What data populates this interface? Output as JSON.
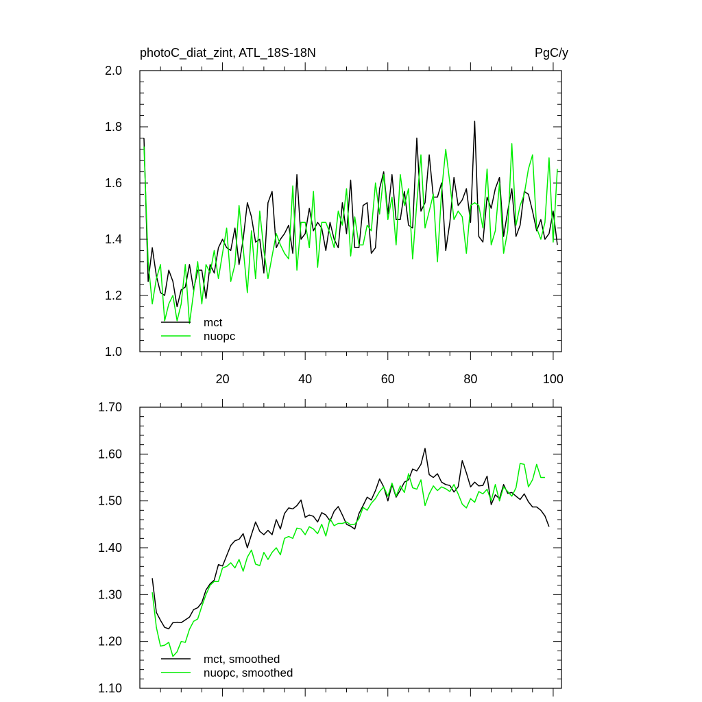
{
  "chart_data": [
    {
      "type": "line",
      "title": "photoC_diat_zint, ATL_18S-18N",
      "units": "PgC/y",
      "xlim": [
        0,
        102
      ],
      "ylim": [
        1.0,
        2.0
      ],
      "xticks": [
        20,
        40,
        60,
        80,
        100
      ],
      "yticks": [
        "1.0",
        "1.2",
        "1.4",
        "1.6",
        "1.8",
        "2.0"
      ],
      "legend": "bottom-left",
      "series": [
        {
          "name": "mct",
          "color": "#000000",
          "x_start": 1,
          "values": [
            1.76,
            1.25,
            1.37,
            1.27,
            1.21,
            1.2,
            1.29,
            1.25,
            1.16,
            1.22,
            1.23,
            1.31,
            1.22,
            1.29,
            1.29,
            1.19,
            1.31,
            1.28,
            1.37,
            1.4,
            1.37,
            1.36,
            1.44,
            1.31,
            1.4,
            1.53,
            1.48,
            1.39,
            1.4,
            1.28,
            1.53,
            1.57,
            1.37,
            1.4,
            1.42,
            1.45,
            1.35,
            1.63,
            1.4,
            1.42,
            1.51,
            1.43,
            1.46,
            1.44,
            1.36,
            1.46,
            1.4,
            1.37,
            1.53,
            1.42,
            1.61,
            1.37,
            1.37,
            1.52,
            1.53,
            1.35,
            1.37,
            1.58,
            1.64,
            1.49,
            1.63,
            1.47,
            1.47,
            1.57,
            1.45,
            1.44,
            1.76,
            1.5,
            1.53,
            1.7,
            1.55,
            1.55,
            1.6,
            1.36,
            1.46,
            1.62,
            1.52,
            1.54,
            1.58,
            1.46,
            1.82,
            1.41,
            1.39,
            1.55,
            1.51,
            1.58,
            1.62,
            1.41,
            1.5,
            1.58,
            1.41,
            1.45,
            1.57,
            1.56,
            1.5,
            1.43,
            1.47,
            1.4,
            1.42,
            1.5,
            1.38
          ]
        },
        {
          "name": "nuopc",
          "color": "#00ee00",
          "x_start": 1,
          "values": [
            1.73,
            1.32,
            1.17,
            1.26,
            1.31,
            1.11,
            1.17,
            1.2,
            1.11,
            1.17,
            1.31,
            1.1,
            1.21,
            1.32,
            1.17,
            1.31,
            1.28,
            1.36,
            1.26,
            1.35,
            1.44,
            1.25,
            1.31,
            1.52,
            1.37,
            1.21,
            1.43,
            1.26,
            1.5,
            1.36,
            1.26,
            1.34,
            1.42,
            1.38,
            1.35,
            1.33,
            1.59,
            1.29,
            1.46,
            1.46,
            1.37,
            1.57,
            1.3,
            1.46,
            1.46,
            1.42,
            1.37,
            1.5,
            1.45,
            1.58,
            1.34,
            1.48,
            1.38,
            1.38,
            1.45,
            1.43,
            1.6,
            1.49,
            1.63,
            1.47,
            1.55,
            1.38,
            1.63,
            1.52,
            1.58,
            1.33,
            1.53,
            1.7,
            1.44,
            1.5,
            1.56,
            1.32,
            1.57,
            1.72,
            1.6,
            1.47,
            1.5,
            1.48,
            1.35,
            1.52,
            1.53,
            1.52,
            1.44,
            1.65,
            1.38,
            1.43,
            1.6,
            1.35,
            1.43,
            1.74,
            1.45,
            1.52,
            1.56,
            1.65,
            1.7,
            1.44,
            1.4,
            1.46,
            1.69,
            1.39,
            1.65
          ]
        }
      ]
    },
    {
      "type": "line",
      "title": "",
      "xlim": [
        0,
        102
      ],
      "ylim": [
        1.1,
        1.7
      ],
      "xticks": [
        20,
        40,
        60,
        80,
        100
      ],
      "yticks": [
        "1.10",
        "1.20",
        "1.30",
        "1.40",
        "1.50",
        "1.60",
        "1.70"
      ],
      "legend": "bottom-left",
      "series": [
        {
          "name": "mct, smoothed",
          "color": "#000000",
          "x_start": 3,
          "values": [
            1.335,
            1.262,
            1.245,
            1.23,
            1.227,
            1.24,
            1.241,
            1.24,
            1.246,
            1.252,
            1.268,
            1.272,
            1.283,
            1.31,
            1.323,
            1.331,
            1.364,
            1.361,
            1.383,
            1.405,
            1.415,
            1.418,
            1.43,
            1.4,
            1.428,
            1.455,
            1.435,
            1.428,
            1.437,
            1.428,
            1.46,
            1.44,
            1.473,
            1.485,
            1.483,
            1.49,
            1.502,
            1.465,
            1.47,
            1.467,
            1.455,
            1.475,
            1.47,
            1.457,
            1.478,
            1.488,
            1.47,
            1.45,
            1.446,
            1.44,
            1.473,
            1.49,
            1.508,
            1.502,
            1.522,
            1.547,
            1.53,
            1.5,
            1.535,
            1.508,
            1.523,
            1.54,
            1.545,
            1.568,
            1.564,
            1.578,
            1.612,
            1.556,
            1.55,
            1.558,
            1.54,
            1.535,
            1.533,
            1.519,
            1.53,
            1.586,
            1.56,
            1.53,
            1.54,
            1.532,
            1.533,
            1.553,
            1.492,
            1.513,
            1.505,
            1.535,
            1.516,
            1.518,
            1.51,
            1.503,
            1.515,
            1.498,
            1.487,
            1.487,
            1.48,
            1.468,
            1.445
          ]
        },
        {
          "name": "nuopc, smoothed",
          "color": "#00ee00",
          "x_start": 3,
          "values": [
            1.305,
            1.23,
            1.19,
            1.192,
            1.198,
            1.168,
            1.178,
            1.2,
            1.198,
            1.226,
            1.243,
            1.248,
            1.275,
            1.3,
            1.32,
            1.328,
            1.328,
            1.357,
            1.36,
            1.368,
            1.357,
            1.375,
            1.35,
            1.38,
            1.395,
            1.365,
            1.362,
            1.39,
            1.375,
            1.39,
            1.4,
            1.385,
            1.42,
            1.424,
            1.42,
            1.442,
            1.44,
            1.428,
            1.445,
            1.44,
            1.43,
            1.45,
            1.425,
            1.462,
            1.447,
            1.452,
            1.452,
            1.455,
            1.449,
            1.45,
            1.462,
            1.486,
            1.48,
            1.495,
            1.505,
            1.52,
            1.53,
            1.51,
            1.538,
            1.51,
            1.532,
            1.518,
            1.558,
            1.528,
            1.525,
            1.545,
            1.49,
            1.515,
            1.532,
            1.522,
            1.53,
            1.526,
            1.52,
            1.535,
            1.515,
            1.493,
            1.485,
            1.505,
            1.497,
            1.52,
            1.515,
            1.525,
            1.5,
            1.535,
            1.5,
            1.53,
            1.52,
            1.51,
            1.528,
            1.58,
            1.578,
            1.53,
            1.545,
            1.578,
            1.55,
            1.55
          ]
        }
      ]
    }
  ]
}
